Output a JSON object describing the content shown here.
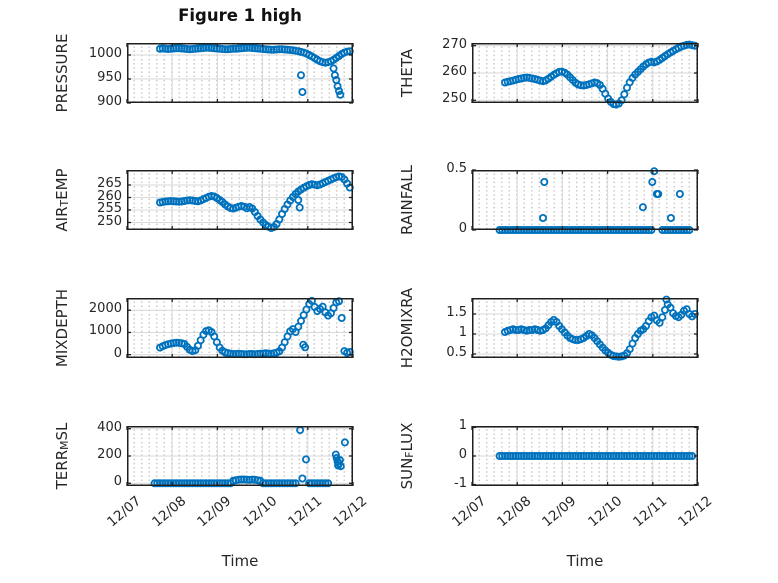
{
  "figure": {
    "title": "Figure 1 high",
    "xlabel": "Time"
  },
  "colors": {
    "marker": "#0072BD",
    "axis": "#1f1f1f",
    "grid_major": "#d9d9d9",
    "grid_minor_dot": "#c7c7c7",
    "text": "#262626",
    "title_text": "#111111"
  },
  "x": {
    "t_start": 0.61,
    "t_step": 0.06,
    "lim": [
      0,
      5
    ],
    "tick_labels": [
      "12/07",
      "12/08",
      "12/09",
      "12/10",
      "12/11",
      "12/12"
    ]
  },
  "chart_data": [
    {
      "name": "PRESSURE",
      "type": "scatter",
      "marker": "o",
      "ylabel": {
        "pre": "PRESSURE",
        "sub": "",
        "post": ""
      },
      "yticks": [
        900,
        950,
        1000
      ],
      "ylim": [
        900,
        1025
      ],
      "values": [
        null,
        null,
        1013,
        1013.5,
        1013,
        1012.5,
        1013,
        1013.5,
        1014,
        1014,
        1013.5,
        1013,
        1012.5,
        1012,
        1012.5,
        1013,
        1013.5,
        1014,
        1014.5,
        1015,
        1015,
        1014.5,
        1014,
        1013.5,
        1013,
        1012.5,
        1012,
        1012,
        1012.5,
        1013,
        1013,
        1013.5,
        1014,
        1014.5,
        1015,
        1015,
        1014.5,
        1014,
        1013.5,
        1013,
        1012.5,
        1012,
        1011.5,
        1011,
        1011,
        1011.5,
        1012,
        1012,
        1011.5,
        1011,
        1010.5,
        1010,
        1009,
        1008,
        1006.5,
        1005,
        1003,
        1000,
        997,
        993.5,
        990,
        987,
        985,
        984,
        985,
        987,
        990,
        994,
        998,
        1002,
        1005,
        1007,
        1008
      ],
      "extra_points": [
        [
          3.85,
          958
        ],
        [
          3.88,
          923
        ],
        [
          4.57,
          972
        ],
        [
          4.6,
          958
        ],
        [
          4.63,
          948
        ],
        [
          4.66,
          935
        ],
        [
          4.69,
          925
        ],
        [
          4.72,
          917
        ]
      ]
    },
    {
      "name": "THETA",
      "type": "scatter",
      "marker": "o",
      "ylabel": {
        "pre": "THETA",
        "sub": "",
        "post": ""
      },
      "yticks": [
        250,
        260,
        270
      ],
      "ylim": [
        249,
        271
      ],
      "values": [
        null,
        null,
        256.5,
        256.8,
        257,
        257.2,
        257.5,
        257.8,
        258,
        258.2,
        258.3,
        258.2,
        258,
        257.8,
        257.5,
        257.2,
        257,
        257.3,
        257.9,
        258.6,
        259.3,
        259.9,
        260.4,
        260.5,
        260.1,
        259.4,
        258.4,
        257.4,
        256.4,
        255.8,
        255.5,
        255.4,
        255.6,
        255.9,
        256.2,
        256.5,
        256.3,
        255.6,
        254.2,
        252.4,
        250.6,
        249.4,
        248.6,
        248.4,
        248.8,
        250,
        252.2,
        254.6,
        256.6,
        258.2,
        259.4,
        260.4,
        261.4,
        262.4,
        263.2,
        263.8,
        264.1,
        263.9,
        264.2,
        264.8,
        265.5,
        266.2,
        266.9,
        267.5,
        268.1,
        268.7,
        269.2,
        269.7,
        270,
        270.3,
        270.4,
        270.2,
        270
      ],
      "extra_points": []
    },
    {
      "name": "AIR_TEMP",
      "type": "scatter",
      "marker": "o",
      "ylabel": {
        "pre": "AIR",
        "sub": "T",
        "post": "EMP"
      },
      "yticks": [
        250,
        255,
        260,
        265
      ],
      "ylim": [
        247,
        271
      ],
      "values": [
        null,
        null,
        258,
        258.2,
        258.4,
        258.5,
        258.6,
        258.5,
        258.4,
        258.3,
        258.4,
        258.6,
        258.8,
        258.9,
        258.8,
        258.6,
        258.5,
        258.8,
        259.3,
        259.8,
        260.3,
        260.6,
        260.4,
        259.8,
        259,
        258.2,
        257.2,
        256.4,
        255.8,
        255.6,
        255.9,
        256.3,
        256.6,
        256.3,
        255.7,
        256.2,
        255.6,
        254.2,
        252.6,
        251.2,
        250,
        249,
        248.3,
        247.8,
        248.2,
        249.4,
        251.2,
        253.4,
        255.4,
        257.2,
        258.8,
        260.2,
        261.4,
        262.4,
        263.2,
        263.9,
        264.5,
        265,
        265.3,
        265.1,
        264.9,
        265.2,
        265.7,
        266.2,
        266.7,
        267.2,
        267.7,
        268.1,
        268.4,
        268.2,
        267.2,
        265.6,
        264
      ],
      "extra_points": [
        [
          3.79,
          259
        ],
        [
          3.82,
          256
        ]
      ]
    },
    {
      "name": "RAINFALL",
      "type": "scatter",
      "marker": "o",
      "ylabel": {
        "pre": "RAINFALL",
        "sub": "",
        "post": ""
      },
      "yticks": [
        0,
        0.5
      ],
      "ylim": [
        0,
        0.5
      ],
      "values": [
        0,
        0,
        0,
        0,
        0,
        0,
        0,
        0,
        0,
        0,
        0,
        0,
        0,
        0,
        0,
        0,
        0,
        0,
        0,
        0,
        0,
        0,
        0,
        0,
        0,
        0,
        0,
        0,
        0,
        0,
        0,
        0,
        0,
        0,
        0,
        0,
        0,
        0,
        0,
        0,
        0,
        0,
        0,
        0,
        0,
        0,
        0,
        0,
        0,
        0,
        0,
        0,
        0,
        0,
        0,
        0,
        0,
        null,
        null,
        null,
        0,
        0,
        0,
        0,
        0,
        0,
        0,
        0,
        0,
        0,
        0,
        null,
        null
      ],
      "extra_points": [
        [
          1.57,
          0.1
        ],
        [
          1.6,
          0.4
        ],
        [
          3.78,
          0.19
        ],
        [
          3.99,
          0.4
        ],
        [
          4.03,
          0.49
        ],
        [
          4.09,
          0.3
        ],
        [
          4.12,
          0.3
        ],
        [
          4.4,
          0.1
        ],
        [
          4.6,
          0.3
        ]
      ]
    },
    {
      "name": "MIXDEPTH",
      "type": "scatter",
      "marker": "o",
      "ylabel": {
        "pre": "MIXDEPTH",
        "sub": "",
        "post": ""
      },
      "yticks": [
        0,
        1000,
        2000
      ],
      "ylim": [
        -150,
        2550
      ],
      "values": [
        null,
        null,
        320,
        380,
        430,
        470,
        500,
        520,
        540,
        530,
        510,
        480,
        350,
        220,
        160,
        200,
        400,
        650,
        900,
        1060,
        1100,
        1020,
        820,
        560,
        320,
        180,
        100,
        70,
        50,
        30,
        30,
        40,
        30,
        20,
        20,
        30,
        30,
        20,
        30,
        40,
        50,
        60,
        50,
        40,
        60,
        90,
        150,
        320,
        560,
        820,
        1050,
        1150,
        1020,
        1260,
        1520,
        1780,
        2030,
        2280,
        2420,
        2150,
        1960,
        2060,
        2160,
        1900,
        1760,
        1860,
        2100,
        2350,
        2400,
        1650,
        160,
        90,
        120
      ],
      "extra_points": [
        [
          3.9,
          450
        ],
        [
          3.94,
          330
        ]
      ]
    },
    {
      "name": "H2OMIXRA",
      "type": "scatter",
      "marker": "o",
      "ylabel": {
        "pre": "H2OMIXRA",
        "sub": "",
        "post": ""
      },
      "yticks": [
        0.5,
        1,
        1.5
      ],
      "ylim": [
        0.4,
        1.9
      ],
      "values": [
        null,
        null,
        1.05,
        1.08,
        1.1,
        1.12,
        1.1,
        1.1,
        1.12,
        1.1,
        1.08,
        1.1,
        1.1,
        1.12,
        1.1,
        1.08,
        1.1,
        1.14,
        1.22,
        1.3,
        1.35,
        1.3,
        1.2,
        1.12,
        1.04,
        0.96,
        0.9,
        0.87,
        0.85,
        0.85,
        0.87,
        0.9,
        0.95,
        1.0,
        0.97,
        0.9,
        0.82,
        0.74,
        0.66,
        0.59,
        0.53,
        0.48,
        0.45,
        0.44,
        0.43,
        0.44,
        0.46,
        0.52,
        0.62,
        0.76,
        0.9,
        1.0,
        1.08,
        1.12,
        1.2,
        1.32,
        1.42,
        1.46,
        1.34,
        1.28,
        1.42,
        1.6,
        1.74,
        1.66,
        1.52,
        1.45,
        1.42,
        1.48,
        1.58,
        1.62,
        1.5,
        1.44,
        1.5
      ],
      "extra_points": [
        [
          4.3,
          1.86
        ]
      ]
    },
    {
      "name": "TERR_MSL",
      "type": "scatter",
      "marker": "o",
      "ylabel": {
        "pre": "TERR",
        "sub": "M",
        "post": "SL"
      },
      "yticks": [
        0,
        200,
        400
      ],
      "ylim": [
        -20,
        420
      ],
      "values": [
        0,
        0,
        0,
        0,
        0,
        0,
        0,
        0,
        0,
        0,
        0,
        0,
        0,
        0,
        0,
        0,
        0,
        0,
        0,
        0,
        0,
        0,
        0,
        0,
        0,
        0,
        0,
        0,
        0,
        18,
        22,
        26,
        28,
        28,
        26,
        25,
        27,
        26,
        22,
        18,
        0,
        0,
        0,
        0,
        0,
        0,
        0,
        0,
        0,
        0,
        0,
        0,
        0,
        null,
        null,
        null,
        null,
        0,
        0,
        0,
        0,
        0,
        0,
        0,
        0,
        null,
        null,
        null,
        null,
        null,
        null,
        null,
        null
      ],
      "extra_points": [
        [
          3.83,
          390
        ],
        [
          3.88,
          35
        ],
        [
          3.96,
          175
        ],
        [
          4.62,
          210
        ],
        [
          4.64,
          185
        ],
        [
          4.66,
          160
        ],
        [
          4.67,
          130
        ],
        [
          4.69,
          145
        ],
        [
          4.71,
          170
        ],
        [
          4.73,
          125
        ],
        [
          4.82,
          300
        ]
      ]
    },
    {
      "name": "SUN_FLUX",
      "type": "scatter",
      "marker": "o",
      "ylabel": {
        "pre": "SUN",
        "sub": "F",
        "post": "LUX"
      },
      "yticks": [
        -1,
        0,
        1
      ],
      "ylim": [
        -1.05,
        1.05
      ],
      "values": [
        0,
        0,
        0,
        0,
        0,
        0,
        0,
        0,
        0,
        0,
        0,
        0,
        0,
        0,
        0,
        0,
        0,
        0,
        0,
        0,
        0,
        0,
        0,
        0,
        0,
        0,
        0,
        0,
        0,
        0,
        0,
        0,
        0,
        0,
        0,
        0,
        0,
        0,
        0,
        0,
        0,
        0,
        0,
        0,
        0,
        0,
        0,
        0,
        0,
        0,
        0,
        0,
        0,
        0,
        0,
        0,
        0,
        0,
        0,
        0,
        0,
        0,
        0,
        0,
        0,
        0,
        0,
        0,
        0,
        0,
        0,
        0,
        null
      ],
      "extra_points": []
    }
  ]
}
